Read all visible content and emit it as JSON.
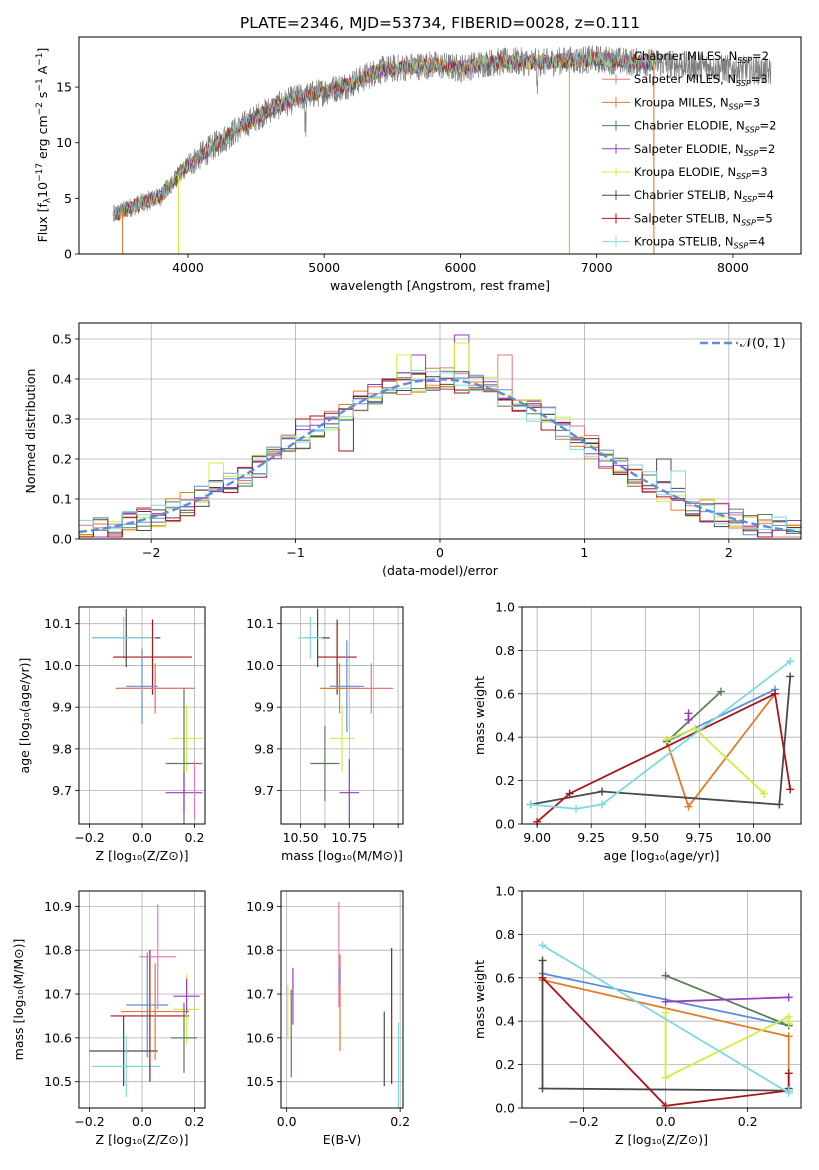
{
  "figure_title": "PLATE=2346, MJD=53734, FIBERID=0028, z=0.111",
  "colors": {
    "chabrier_miles": "#5b8fd9",
    "salpeter_miles": "#e77b7b",
    "kroupa_miles": "#e07b30",
    "chabrier_elodie": "#5a7d5a",
    "salpeter_elodie": "#9a3cc0",
    "kroupa_elodie": "#d0ee40",
    "chabrier_stelib": "#4a4a4a",
    "salpeter_stelib": "#a8151a",
    "kroupa_stelib": "#80d8e0",
    "data": "#7f7f7f",
    "pink": "#e77bc0"
  },
  "chart_data": [
    {
      "id": "spectrum",
      "type": "line",
      "title": "PLATE=2346, MJD=53734, FIBERID=0028, z=0.111",
      "xlabel": "wavelength [Angstrom, rest frame]",
      "ylabel_parts": [
        "Flux [f",
        "λ",
        "10",
        "−17",
        " erg cm",
        "−2",
        " s",
        "−1",
        " A",
        "−1",
        "]"
      ],
      "xlim": [
        3200,
        8500
      ],
      "ylim": [
        0,
        19.5
      ],
      "xticks": [
        4000,
        5000,
        6000,
        7000,
        8000
      ],
      "yticks": [
        0,
        5,
        10,
        15
      ],
      "grid": false,
      "legend_position": "right",
      "legend": [
        {
          "imf": "Chabrier",
          "lib": "MILES",
          "n": "2",
          "color": "#5b8fd9"
        },
        {
          "imf": "Salpeter",
          "lib": "MILES",
          "n": "3",
          "color": "#e77b7b"
        },
        {
          "imf": "Kroupa",
          "lib": "MILES",
          "n": "3",
          "color": "#e07b30"
        },
        {
          "imf": "Chabrier",
          "lib": "ELODIE",
          "n": "2",
          "color": "#5a7d5a"
        },
        {
          "imf": "Salpeter",
          "lib": "ELODIE",
          "n": "2",
          "color": "#9a3cc0"
        },
        {
          "imf": "Kroupa",
          "lib": "ELODIE",
          "n": "3",
          "color": "#d0ee40"
        },
        {
          "imf": "Chabrier",
          "lib": "STELIB",
          "n": "4",
          "color": "#4a4a4a"
        },
        {
          "imf": "Salpeter",
          "lib": "STELIB",
          "n": "5",
          "color": "#a8151a"
        },
        {
          "imf": "Kroupa",
          "lib": "STELIB",
          "n": "4",
          "color": "#80d8e0"
        }
      ],
      "continuum_x": [
        3450,
        3600,
        3800,
        4000,
        4200,
        4400,
        4600,
        4800,
        5000,
        5200,
        5400,
        5600,
        5800,
        6000,
        6200,
        6400,
        6600,
        6800,
        7000,
        7200,
        7400,
        7600,
        7800,
        8000,
        8200,
        8280
      ],
      "continuum_y": [
        3.5,
        4.3,
        5.2,
        8.0,
        9.8,
        11.5,
        13.0,
        14.0,
        14.6,
        15.3,
        16.5,
        16.8,
        17.0,
        16.7,
        17.2,
        17.3,
        17.2,
        17.4,
        17.5,
        17.3,
        17.2,
        17.0,
        16.8,
        16.6,
        16.5,
        16.3
      ],
      "model_range": [
        3450,
        7420
      ],
      "drop_wavelengths": [
        3520,
        3930,
        6800,
        7420
      ]
    },
    {
      "id": "residuals",
      "type": "step",
      "xlabel": "(data-model)/error",
      "ylabel": "Normed distribution",
      "xlim": [
        -2.5,
        2.5
      ],
      "ylim": [
        0,
        0.54
      ],
      "xticks": [
        -2,
        -1,
        0,
        1,
        2
      ],
      "xtick_labels": [
        "−2",
        "−1",
        "0",
        "1",
        "2"
      ],
      "yticks": [
        0.0,
        0.1,
        0.2,
        0.3,
        0.4,
        0.5
      ],
      "ytick_labels": [
        "0.0",
        "0.1",
        "0.2",
        "0.3",
        "0.4",
        "0.5"
      ],
      "grid": true,
      "bin_width": 0.1,
      "reference_label": "𝒩(0, 1)",
      "reference_color": "#5b8fd9",
      "legend_position": "top-right",
      "spikes": [
        {
          "x": -1.55,
          "v": 0.19,
          "color": "#d0ee40"
        },
        {
          "x": -0.25,
          "v": 0.46,
          "color": "#d0ee40"
        },
        {
          "x": -0.15,
          "v": 0.46,
          "color": "#9a3cc0"
        },
        {
          "x": 0.15,
          "v": 0.51,
          "color": "#9a3cc0"
        },
        {
          "x": 0.15,
          "v": 0.49,
          "color": "#d0ee40"
        },
        {
          "x": 0.45,
          "v": 0.46,
          "color": "#e77b7b"
        },
        {
          "x": -0.95,
          "v": 0.3,
          "color": "#a8151a"
        },
        {
          "x": -0.65,
          "v": 0.22,
          "color": "#a8151a"
        },
        {
          "x": 1.55,
          "v": 0.2,
          "color": "#4a4a4a"
        },
        {
          "x": 1.65,
          "v": 0.17,
          "color": "#80d8e0"
        }
      ]
    },
    {
      "id": "age_vs_Z",
      "type": "scatter",
      "xlabel": "Z [log₁₀(Z/Z⊙)]",
      "ylabel": "age  [log₁₀(age/yr)]",
      "xlim": [
        -0.24,
        0.24
      ],
      "ylim": [
        9.62,
        10.14
      ],
      "xticks": [
        -0.2,
        0.0,
        0.2
      ],
      "xtick_labels": [
        "−0.2",
        "0.0",
        "0.2"
      ],
      "yticks": [
        9.7,
        9.8,
        9.9,
        10.0,
        10.1
      ],
      "ytick_labels": [
        "9.7",
        "9.8",
        "9.9",
        "10.0",
        "10.1"
      ],
      "grid": true,
      "points": [
        {
          "x": -0.06,
          "y": 10.066,
          "xerr": 0.13,
          "yerr": 0.07,
          "color": "#4a4a4a"
        },
        {
          "x": -0.07,
          "y": 10.066,
          "xerr": 0.12,
          "yerr": 0.05,
          "color": "#80d8e0"
        },
        {
          "x": 0.04,
          "y": 10.02,
          "xerr": 0.15,
          "yerr": 0.09,
          "color": "#a8151a"
        },
        {
          "x": 0.0,
          "y": 9.95,
          "xerr": 0.06,
          "yerr": 0.09,
          "color": "#5b8fd9"
        },
        {
          "x": 0.05,
          "y": 9.945,
          "xerr": 0.15,
          "yerr": 0.06,
          "color": "#e07b30"
        },
        {
          "x": 0.05,
          "y": 9.945,
          "xerr": 0.14,
          "yerr": 0.05,
          "color": "#e77b7b"
        },
        {
          "x": 0.17,
          "y": 9.825,
          "xerr": 0.06,
          "yerr": 0.08,
          "color": "#d0ee40"
        },
        {
          "x": 0.16,
          "y": 9.765,
          "xerr": 0.07,
          "yerr": 0.18,
          "color": "#5a7d5a"
        },
        {
          "x": 0.16,
          "y": 9.695,
          "xerr": 0.07,
          "yerr": 0.05,
          "color": "#9a3cc0"
        },
        {
          "x": 0.2,
          "y": 9.7,
          "xerr": 0.0,
          "yerr": 0.07,
          "color": "#e77bc0"
        }
      ]
    },
    {
      "id": "age_vs_mass",
      "type": "scatter",
      "xlabel": "mass [log₁₀(M/M⊙)]",
      "ylabel": "",
      "xlim": [
        10.42,
        10.92
      ],
      "ylim": [
        9.62,
        10.14
      ],
      "xticks": [
        10.5,
        10.6,
        10.7,
        10.8,
        10.9
      ],
      "xtick_labels": [
        "10.50",
        "",
        "10.75",
        "",
        ""
      ],
      "yticks": [
        9.7,
        9.8,
        9.9,
        10.0,
        10.1
      ],
      "ytick_labels": [
        "9.7",
        "9.8",
        "9.9",
        "10.0",
        "10.1"
      ],
      "grid": true,
      "points": [
        {
          "x": 10.57,
          "y": 10.066,
          "xerr": 0.05,
          "yerr": 0.07,
          "color": "#4a4a4a"
        },
        {
          "x": 10.54,
          "y": 10.066,
          "xerr": 0.05,
          "yerr": 0.05,
          "color": "#80d8e0"
        },
        {
          "x": 10.65,
          "y": 10.02,
          "xerr": 0.08,
          "yerr": 0.09,
          "color": "#a8151a"
        },
        {
          "x": 10.69,
          "y": 9.95,
          "xerr": 0.07,
          "yerr": 0.11,
          "color": "#5b8fd9"
        },
        {
          "x": 10.66,
          "y": 9.945,
          "xerr": 0.08,
          "yerr": 0.06,
          "color": "#e07b30"
        },
        {
          "x": 10.79,
          "y": 9.945,
          "xerr": 0.09,
          "yerr": 0.06,
          "color": "#e77b7b"
        },
        {
          "x": 10.67,
          "y": 9.825,
          "xerr": 0.05,
          "yerr": 0.08,
          "color": "#d0ee40"
        },
        {
          "x": 10.6,
          "y": 9.765,
          "xerr": 0.06,
          "yerr": 0.09,
          "color": "#5a7d5a"
        },
        {
          "x": 10.7,
          "y": 9.695,
          "xerr": 0.04,
          "yerr": 0.08,
          "color": "#9a3cc0"
        }
      ]
    },
    {
      "id": "weight_vs_age",
      "type": "line",
      "xlabel": "age  [log₁₀(age/yr)]",
      "ylabel": "mass weight",
      "xlim": [
        8.93,
        10.22
      ],
      "ylim": [
        0.0,
        1.0
      ],
      "xticks": [
        9.0,
        9.25,
        9.5,
        9.75,
        10.0
      ],
      "xtick_labels": [
        "9.00",
        "9.25",
        "9.50",
        "9.75",
        "10.00"
      ],
      "yticks": [
        0.0,
        0.2,
        0.4,
        0.6,
        0.8,
        1.0
      ],
      "ytick_labels": [
        "0.0",
        "0.2",
        "0.4",
        "0.6",
        "0.8",
        "1.0"
      ],
      "grid": true,
      "series": [
        {
          "color": "#5b8fd9",
          "x": [
            9.6,
            10.1
          ],
          "y": [
            0.38,
            0.62
          ]
        },
        {
          "color": "#e07b30",
          "x": [
            9.6,
            9.7,
            10.1
          ],
          "y": [
            0.38,
            0.08,
            0.6
          ]
        },
        {
          "color": "#5a7d5a",
          "x": [
            9.6,
            9.85
          ],
          "y": [
            0.38,
            0.61
          ]
        },
        {
          "color": "#9a3cc0",
          "x": [
            9.7,
            9.7
          ],
          "y": [
            0.48,
            0.51
          ]
        },
        {
          "color": "#d0ee40",
          "x": [
            9.6,
            9.73,
            10.05
          ],
          "y": [
            0.39,
            0.44,
            0.14
          ]
        },
        {
          "color": "#4a4a4a",
          "x": [
            8.97,
            9.3,
            10.12,
            10.17
          ],
          "y": [
            0.09,
            0.15,
            0.09,
            0.68
          ]
        },
        {
          "color": "#a8151a",
          "x": [
            9.0,
            9.15,
            10.1,
            10.17
          ],
          "y": [
            0.01,
            0.14,
            0.6,
            0.16
          ]
        },
        {
          "color": "#80d8e0",
          "x": [
            8.97,
            9.18,
            9.3,
            10.17
          ],
          "y": [
            0.09,
            0.07,
            0.09,
            0.75
          ]
        }
      ]
    },
    {
      "id": "mass_vs_Z",
      "type": "scatter",
      "xlabel": "Z [log₁₀(Z/Z⊙)]",
      "ylabel": "mass [log₁₀(M/M⊙)]",
      "xlim": [
        -0.24,
        0.24
      ],
      "ylim": [
        10.44,
        10.935
      ],
      "xticks": [
        -0.2,
        0.0,
        0.2
      ],
      "xtick_labels": [
        "−0.2",
        "0.0",
        "0.2"
      ],
      "yticks": [
        10.5,
        10.6,
        10.7,
        10.8,
        10.9
      ],
      "ytick_labels": [
        "10.5",
        "10.6",
        "10.7",
        "10.8",
        "10.9"
      ],
      "grid": true,
      "points": [
        {
          "x": -0.07,
          "y": 10.57,
          "xerr": 0.13,
          "yerr": 0.08,
          "color": "#4a4a4a"
        },
        {
          "x": -0.06,
          "y": 10.535,
          "xerr": 0.13,
          "yerr": 0.07,
          "color": "#80d8e0"
        },
        {
          "x": 0.03,
          "y": 10.65,
          "xerr": 0.15,
          "yerr": 0.15,
          "color": "#a8151a"
        },
        {
          "x": 0.02,
          "y": 10.675,
          "xerr": 0.08,
          "yerr": 0.12,
          "color": "#5b8fd9"
        },
        {
          "x": 0.05,
          "y": 10.66,
          "xerr": 0.13,
          "yerr": 0.11,
          "color": "#e07b30"
        },
        {
          "x": 0.06,
          "y": 10.785,
          "xerr": 0.07,
          "yerr": 0.12,
          "color": "#e77bc0"
        },
        {
          "x": 0.17,
          "y": 10.665,
          "xerr": 0.05,
          "yerr": 0.08,
          "color": "#d0ee40"
        },
        {
          "x": 0.16,
          "y": 10.6,
          "xerr": 0.05,
          "yerr": 0.08,
          "color": "#5a7d5a"
        },
        {
          "x": 0.17,
          "y": 10.695,
          "xerr": 0.05,
          "yerr": 0.04,
          "color": "#9a3cc0"
        }
      ]
    },
    {
      "id": "mass_vs_ebv",
      "type": "scatter",
      "xlabel": "E(B-V)",
      "ylabel": "",
      "xlim": [
        -0.01,
        0.205
      ],
      "ylim": [
        10.44,
        10.935
      ],
      "xticks": [
        0.0,
        0.2
      ],
      "xtick_labels": [
        "0.0",
        "0.2"
      ],
      "yticks": [
        10.5,
        10.6,
        10.7,
        10.8,
        10.9
      ],
      "ytick_labels": [
        "10.5",
        "10.6",
        "10.7",
        "10.8",
        "10.9"
      ],
      "grid": true,
      "points": [
        {
          "x": 0.002,
          "y": 10.66,
          "xerr": 0.0,
          "yerr": 0.06,
          "color": "#d0ee40"
        },
        {
          "x": 0.008,
          "y": 10.61,
          "xerr": 0.0,
          "yerr": 0.1,
          "color": "#5a7d5a"
        },
        {
          "x": 0.011,
          "y": 10.695,
          "xerr": 0.0,
          "yerr": 0.065,
          "color": "#9a3cc0"
        },
        {
          "x": 0.092,
          "y": 10.79,
          "xerr": 0.0,
          "yerr": 0.12,
          "color": "#e77bc0"
        },
        {
          "x": 0.094,
          "y": 10.68,
          "xerr": 0.0,
          "yerr": 0.11,
          "color": "#e07b30"
        },
        {
          "x": 0.094,
          "y": 10.74,
          "xerr": 0.0,
          "yerr": 0.02,
          "color": "#5b8fd9"
        },
        {
          "x": 0.172,
          "y": 10.575,
          "xerr": 0.0,
          "yerr": 0.085,
          "color": "#4a4a4a"
        },
        {
          "x": 0.185,
          "y": 10.65,
          "xerr": 0.0,
          "yerr": 0.155,
          "color": "#a8151a"
        },
        {
          "x": 0.197,
          "y": 10.535,
          "xerr": 0.0,
          "yerr": 0.1,
          "color": "#80d8e0"
        }
      ]
    },
    {
      "id": "weight_vs_Z",
      "type": "line",
      "xlabel": "Z [log₁₀(Z/Z⊙)]",
      "ylabel": "mass weight",
      "xlim": [
        -0.35,
        0.33
      ],
      "ylim": [
        0.0,
        1.0
      ],
      "xticks": [
        -0.2,
        0.0,
        0.2
      ],
      "xtick_labels": [
        "−0.2",
        "0.0",
        "0.2"
      ],
      "yticks": [
        0.0,
        0.2,
        0.4,
        0.6,
        0.8,
        1.0
      ],
      "ytick_labels": [
        "0.0",
        "0.2",
        "0.4",
        "0.6",
        "0.8",
        "1.0"
      ],
      "grid": true,
      "series": [
        {
          "color": "#5b8fd9",
          "x": [
            -0.3,
            0.3
          ],
          "y": [
            0.62,
            0.38
          ]
        },
        {
          "color": "#e07b30",
          "x": [
            -0.3,
            0.3,
            0.3
          ],
          "y": [
            0.59,
            0.33,
            0.08
          ]
        },
        {
          "color": "#5a7d5a",
          "x": [
            0.0,
            0.3
          ],
          "y": [
            0.61,
            0.38
          ]
        },
        {
          "color": "#9a3cc0",
          "x": [
            0.0,
            0.3
          ],
          "y": [
            0.49,
            0.51
          ]
        },
        {
          "color": "#d0ee40",
          "x": [
            0.0,
            0.0,
            0.3,
            0.3
          ],
          "y": [
            0.44,
            0.14,
            0.42,
            0.39
          ]
        },
        {
          "color": "#4a4a4a",
          "x": [
            -0.3,
            -0.3,
            0.3,
            0.3
          ],
          "y": [
            0.68,
            0.09,
            0.08,
            0.09
          ]
        },
        {
          "color": "#a8151a",
          "x": [
            -0.3,
            0.0,
            0.3,
            0.3
          ],
          "y": [
            0.6,
            0.01,
            0.08,
            0.16
          ]
        },
        {
          "color": "#80d8e0",
          "x": [
            -0.3,
            0.3,
            0.3
          ],
          "y": [
            0.75,
            0.07,
            0.08
          ]
        }
      ]
    }
  ]
}
